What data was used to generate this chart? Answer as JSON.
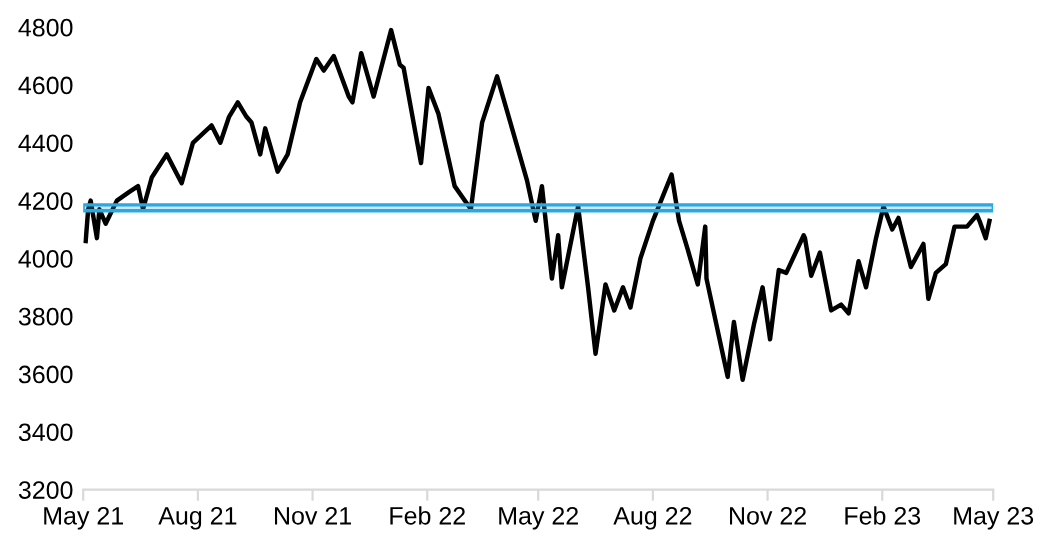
{
  "chart_data": {
    "type": "line",
    "x": [
      "2021-05-03",
      "2021-05-05",
      "2021-05-07",
      "2021-05-12",
      "2021-05-14",
      "2021-05-19",
      "2021-05-28",
      "2021-06-07",
      "2021-06-14",
      "2021-06-18",
      "2021-06-25",
      "2021-07-07",
      "2021-07-19",
      "2021-07-28",
      "2021-08-12",
      "2021-08-19",
      "2021-08-26",
      "2021-09-02",
      "2021-09-09",
      "2021-09-13",
      "2021-09-20",
      "2021-09-24",
      "2021-10-04",
      "2021-10-12",
      "2021-10-22",
      "2021-11-04",
      "2021-11-10",
      "2021-11-18",
      "2021-11-30",
      "2021-12-03",
      "2021-12-10",
      "2021-12-20",
      "2022-01-03",
      "2022-01-10",
      "2022-01-13",
      "2022-01-24",
      "2022-01-27",
      "2022-02-02",
      "2022-02-10",
      "2022-02-23",
      "2022-03-08",
      "2022-03-17",
      "2022-03-29",
      "2022-04-08",
      "2022-04-22",
      "2022-04-29",
      "2022-05-04",
      "2022-05-12",
      "2022-05-17",
      "2022-05-20",
      "2022-06-02",
      "2022-06-10",
      "2022-06-16",
      "2022-06-24",
      "2022-07-01",
      "2022-07-08",
      "2022-07-14",
      "2022-07-22",
      "2022-08-01",
      "2022-08-16",
      "2022-08-22",
      "2022-08-29",
      "2022-09-06",
      "2022-09-12",
      "2022-09-13",
      "2022-09-27",
      "2022-09-30",
      "2022-10-05",
      "2022-10-12",
      "2022-10-21",
      "2022-10-28",
      "2022-11-03",
      "2022-11-10",
      "2022-11-16",
      "2022-11-30",
      "2022-12-01",
      "2022-12-06",
      "2022-12-13",
      "2022-12-22",
      "2022-12-30",
      "2023-01-05",
      "2023-01-13",
      "2023-01-19",
      "2023-01-27",
      "2023-02-02",
      "2023-02-09",
      "2023-02-14",
      "2023-02-24",
      "2023-03-06",
      "2023-03-10",
      "2023-03-16",
      "2023-03-24",
      "2023-03-31",
      "2023-04-10",
      "2023-04-18",
      "2023-04-20",
      "2023-04-25",
      "2023-04-28"
    ],
    "series": [
      {
        "color": "#000000",
        "values": [
          4060,
          4170,
          4200,
          4070,
          4170,
          4120,
          4200,
          4230,
          4250,
          4170,
          4280,
          4360,
          4260,
          4400,
          4460,
          4400,
          4490,
          4540,
          4490,
          4470,
          4360,
          4450,
          4300,
          4360,
          4540,
          4690,
          4650,
          4700,
          4560,
          4540,
          4710,
          4560,
          4790,
          4670,
          4660,
          4400,
          4330,
          4590,
          4500,
          4250,
          4170,
          4470,
          4630,
          4480,
          4270,
          4130,
          4250,
          3930,
          4080,
          3900,
          4180,
          3900,
          3670,
          3910,
          3820,
          3900,
          3830,
          4000,
          4130,
          4290,
          4130,
          4030,
          3910,
          4110,
          3930,
          3650,
          3590,
          3780,
          3580,
          3770,
          3900,
          3720,
          3960,
          3950,
          4080,
          4070,
          3940,
          4020,
          3820,
          3840,
          3810,
          3990,
          3900,
          4070,
          4180,
          4100,
          4140,
          3970,
          4050,
          3860,
          3950,
          3980,
          4110,
          4110,
          4150,
          4130,
          4070,
          4130
        ]
      }
    ],
    "xlim": [
      "2021-05-01",
      "2023-05-01"
    ],
    "xticks": [
      {
        "value": "2021-05-01",
        "label": "May 21"
      },
      {
        "value": "2021-08-01",
        "label": "Aug 21"
      },
      {
        "value": "2021-11-01",
        "label": "Nov 21"
      },
      {
        "value": "2022-02-01",
        "label": "Feb 22"
      },
      {
        "value": "2022-05-01",
        "label": "May 22"
      },
      {
        "value": "2022-08-01",
        "label": "Aug 22"
      },
      {
        "value": "2022-11-01",
        "label": "Nov 22"
      },
      {
        "value": "2023-02-01",
        "label": "Feb 23"
      },
      {
        "value": "2023-05-01",
        "label": "May 23"
      }
    ],
    "ylim": [
      3200,
      4800
    ],
    "yticks": [
      3200,
      3400,
      3600,
      3800,
      4000,
      4200,
      4400,
      4600,
      4800
    ],
    "bands": [
      {
        "axis": "y",
        "from": 4165,
        "to": 4185,
        "color": "#29a9e0"
      }
    ],
    "grid": false
  }
}
